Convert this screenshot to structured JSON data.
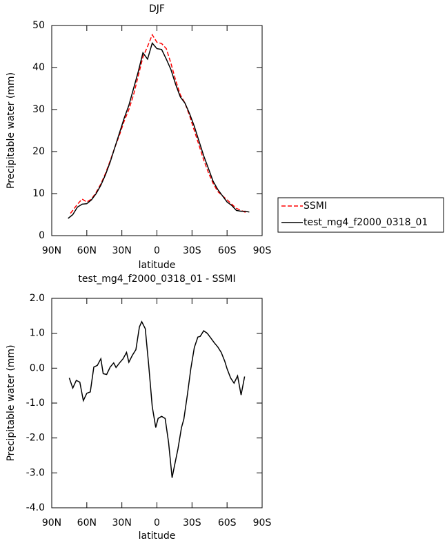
{
  "chart_data": [
    {
      "type": "line",
      "title": "DJF",
      "xlabel": "latitude",
      "ylabel": "Precipitable water (mm)",
      "xlim": [
        90,
        -90
      ],
      "ylim": [
        0,
        50
      ],
      "xticks": [
        {
          "value": 90,
          "label": "90N"
        },
        {
          "value": 60,
          "label": "60N"
        },
        {
          "value": 30,
          "label": "30N"
        },
        0,
        {
          "value": -30,
          "label": "30S"
        },
        {
          "value": -60,
          "label": "60S"
        },
        {
          "value": -90,
          "label": "90S"
        }
      ],
      "yticks": [
        0,
        10,
        20,
        30,
        40,
        50
      ],
      "legend": "right",
      "series": [
        {
          "name": "SSMI",
          "color": "#ff0000",
          "dash": true,
          "x": [
            74,
            72,
            68,
            64,
            60,
            56,
            52,
            48,
            44,
            40,
            36,
            32,
            28,
            24,
            20,
            16,
            12,
            8,
            4,
            0,
            -4,
            -8,
            -12,
            -16,
            -20,
            -24,
            -28,
            -32,
            -36,
            -40,
            -44,
            -48,
            -52,
            -56,
            -60,
            -64,
            -68,
            -72,
            -76
          ],
          "values": [
            5.3,
            6,
            7.5,
            8.7,
            8,
            8.7,
            10.3,
            12.3,
            14.8,
            17.8,
            21,
            24,
            27.3,
            30,
            33.5,
            38,
            42.5,
            45,
            47.8,
            46,
            45.7,
            44.5,
            41,
            37,
            33.5,
            31.5,
            28.5,
            25,
            21.5,
            18,
            15,
            12.5,
            10.5,
            9.5,
            8.5,
            7.5,
            6.5,
            6,
            5.5
          ]
        },
        {
          "name": "test_mg4_f2000_0318_01",
          "color": "#000000",
          "dash": false,
          "x": [
            76,
            72,
            68,
            64,
            60,
            56,
            52,
            48,
            44,
            40,
            36,
            32,
            28,
            24,
            20,
            16,
            12,
            8,
            4,
            0,
            -4,
            -8,
            -12,
            -16,
            -20,
            -24,
            -28,
            -32,
            -36,
            -40,
            -44,
            -48,
            -52,
            -56,
            -60,
            -64,
            -68,
            -72,
            -76,
            -79
          ],
          "values": [
            4.1,
            5,
            6.8,
            7.5,
            7.6,
            8.5,
            10,
            12,
            14.5,
            17.5,
            21,
            24.5,
            28,
            31,
            35,
            39,
            43.5,
            42,
            45.8,
            44.5,
            44.3,
            42,
            39.5,
            36,
            33,
            31.5,
            29,
            26,
            22.5,
            19,
            16,
            13,
            11,
            9.5,
            8,
            7.2,
            6,
            5.8,
            5.8,
            5.6
          ]
        }
      ]
    },
    {
      "type": "line",
      "title": "test_mg4_f2000_0318_01 - SSMI",
      "xlabel": "latitude",
      "ylabel": "Precipitable water (mm)",
      "xlim": [
        90,
        -90
      ],
      "ylim": [
        -4,
        2
      ],
      "xticks": [
        {
          "value": 90,
          "label": "90N"
        },
        {
          "value": 60,
          "label": "60N"
        },
        {
          "value": 30,
          "label": "30N"
        },
        0,
        {
          "value": -30,
          "label": "30S"
        },
        {
          "value": -60,
          "label": "60S"
        },
        {
          "value": -90,
          "label": "90S"
        }
      ],
      "yticks": [
        {
          "value": 2,
          "label": "2.0"
        },
        {
          "value": 1,
          "label": "1.0"
        },
        {
          "value": 0,
          "label": "0.0"
        },
        {
          "value": -1,
          "label": "-1.0"
        },
        {
          "value": -2,
          "label": "-2.0"
        },
        {
          "value": -3,
          "label": "-3.0"
        },
        {
          "value": -4,
          "label": "-4.0"
        }
      ],
      "series": [
        {
          "color": "#000000",
          "dash": false,
          "x": [
            75,
            72,
            69,
            66,
            63,
            60,
            57,
            54,
            51,
            48,
            46,
            43,
            40,
            37,
            35,
            32,
            29,
            26,
            24,
            21,
            18,
            15,
            13,
            10,
            7,
            4,
            1,
            -1,
            -4,
            -7,
            -10,
            -13,
            -15,
            -18,
            -21,
            -23,
            -26,
            -29,
            -32,
            -35,
            -37,
            -40,
            -43,
            -46,
            -49,
            -52,
            -55,
            -58,
            -60,
            -63,
            -66,
            -69,
            -72,
            -75
          ],
          "values": [
            -0.28,
            -0.57,
            -0.35,
            -0.4,
            -0.93,
            -0.72,
            -0.68,
            0.03,
            0.08,
            0.27,
            -0.16,
            -0.18,
            0.03,
            0.15,
            0.02,
            0.15,
            0.27,
            0.45,
            0.17,
            0.37,
            0.53,
            1.18,
            1.33,
            1.13,
            0.08,
            -1.1,
            -1.7,
            -1.44,
            -1.38,
            -1.44,
            -2.13,
            -3.14,
            -2.8,
            -2.31,
            -1.7,
            -1.46,
            -0.77,
            -0.02,
            0.59,
            0.89,
            0.91,
            1.07,
            1.0,
            0.87,
            0.73,
            0.61,
            0.45,
            0.2,
            -0.02,
            -0.28,
            -0.43,
            -0.22,
            -0.77,
            -0.24
          ]
        }
      ]
    }
  ]
}
